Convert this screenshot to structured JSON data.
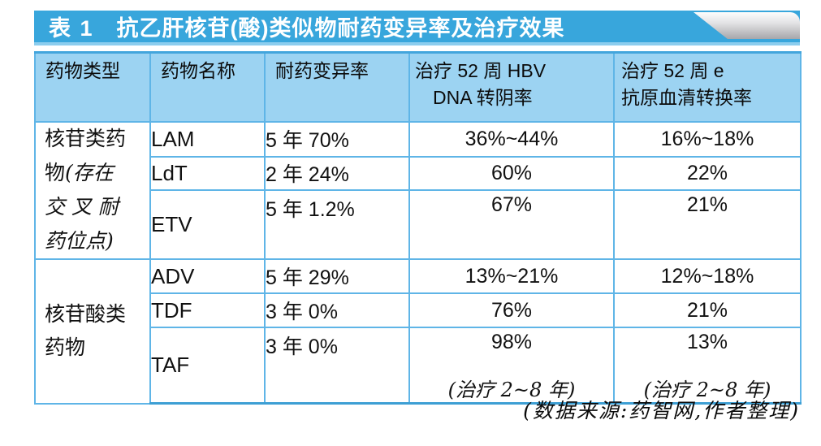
{
  "title": {
    "label": "表 1",
    "text": "抗乙肝核苷(酸)类似物耐药变异率及治疗效果"
  },
  "footer": "(数据来源:药智网,作者整理)",
  "colors": {
    "title_bar_blue": "#38a6dc",
    "header_bg": "#9cd3f2",
    "border_blue": "#5fb5e7",
    "flag_gray": "#a6a6aa"
  },
  "table": {
    "headers": [
      {
        "lines": [
          "药物类型"
        ]
      },
      {
        "lines": [
          "药物名称"
        ]
      },
      {
        "lines": [
          "耐药变异率"
        ]
      },
      {
        "lines": [
          "治疗 52 周 HBV",
          "DNA 转阴率"
        ]
      },
      {
        "lines": [
          "治疗 52 周 e",
          "抗原血清转换率"
        ]
      }
    ],
    "groups": [
      {
        "type_lines": [
          [
            {
              "t": "核苷类药",
              "s": "reg"
            }
          ],
          [
            {
              "t": "物",
              "s": "reg"
            },
            {
              "t": "(存在",
              "s": "kai"
            }
          ],
          [
            {
              "t": "交 叉 耐",
              "s": "kai"
            }
          ],
          [
            {
              "t": "药位点)",
              "s": "kai"
            }
          ]
        ],
        "rows": [
          {
            "name": "LAM",
            "rate": "5 年 70%",
            "dna": "36%~44%",
            "sero": "16%~18%",
            "tall": false,
            "h": 40
          },
          {
            "name": "LdT",
            "rate": "2 年 24%",
            "dna": "60%",
            "sero": "22%",
            "tall": false,
            "h": 39
          },
          {
            "name": "ETV",
            "rate": "5 年 1.2%",
            "dna": "67%",
            "sero": "21%",
            "tall": true,
            "h": 82
          }
        ]
      },
      {
        "type_lines": [
          [
            {
              "t": "核苷酸类",
              "s": "reg"
            }
          ],
          [
            {
              "t": "药物",
              "s": "reg"
            }
          ]
        ],
        "rows": [
          {
            "name": "ADV",
            "rate": "5 年 29%",
            "dna": "13%~21%",
            "sero": "12%~18%",
            "tall": false,
            "h": 40
          },
          {
            "name": "TDF",
            "rate": "3 年 0%",
            "dna": "76%",
            "sero": "21%",
            "tall": false,
            "h": 40
          },
          {
            "name": "TAF",
            "rate": "3 年 0%",
            "dna": {
              "main": "98%",
              "note": "(治疗 2~8 年)"
            },
            "sero": {
              "main": "13%",
              "note": "(治疗 2~8 年)"
            },
            "tall": true,
            "h": 88
          }
        ]
      }
    ]
  }
}
